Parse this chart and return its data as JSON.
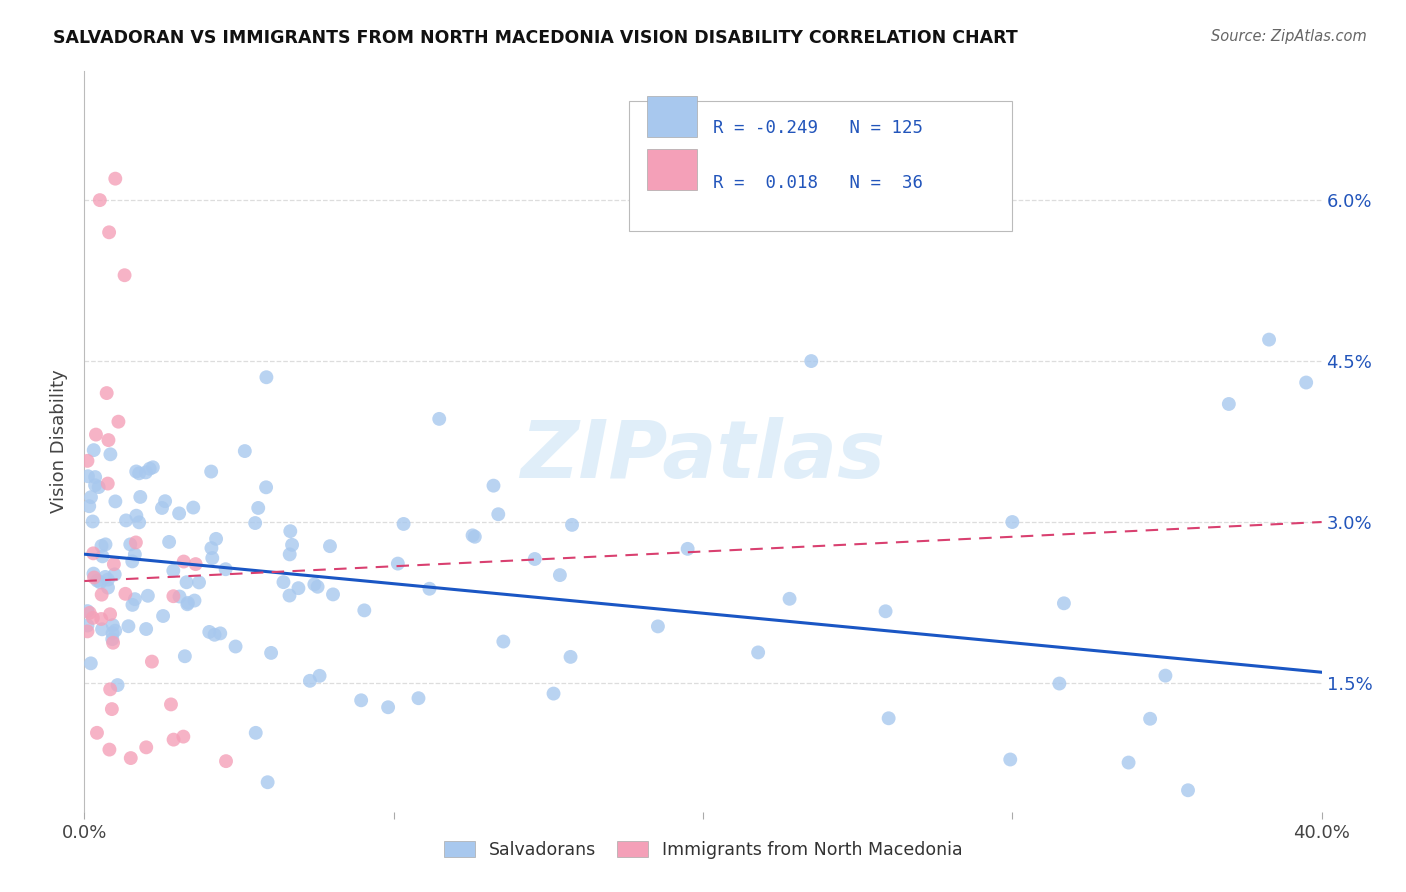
{
  "title": "SALVADORAN VS IMMIGRANTS FROM NORTH MACEDONIA VISION DISABILITY CORRELATION CHART",
  "source": "Source: ZipAtlas.com",
  "ylabel": "Vision Disability",
  "yticks": [
    "1.5%",
    "3.0%",
    "4.5%",
    "6.0%"
  ],
  "ytick_vals": [
    0.015,
    0.03,
    0.045,
    0.06
  ],
  "xlim": [
    0.0,
    0.4
  ],
  "ylim": [
    0.003,
    0.072
  ],
  "legend_blue_label": "Salvadorans",
  "legend_pink_label": "Immigrants from North Macedonia",
  "blue_color": "#a8c8ee",
  "pink_color": "#f4a0b8",
  "blue_line_color": "#1a56c4",
  "pink_line_color": "#d94070",
  "watermark": "ZIPatlas"
}
